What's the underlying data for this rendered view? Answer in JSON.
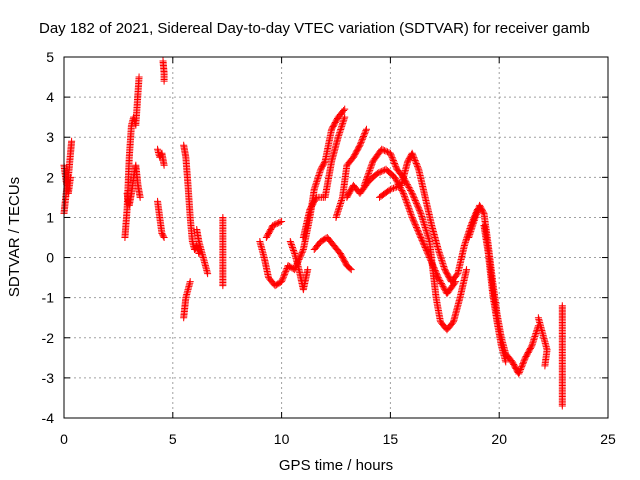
{
  "chart_data": {
    "type": "scatter",
    "title": "Day 182 of 2021, Sidereal Day-to-day VTEC variation (SDTVAR) for receiver gamb",
    "xlabel": "GPS time / hours",
    "ylabel": "SDTVAR / TECUs",
    "xlim": [
      0,
      25
    ],
    "ylim": [
      -4,
      5
    ],
    "xticks": [
      "0",
      "5",
      "10",
      "15",
      "20",
      "25"
    ],
    "yticks": [
      "-4",
      "-3",
      "-2",
      "-1",
      "0",
      "1",
      "2",
      "3",
      "4",
      "5"
    ],
    "grid": true,
    "marker": "+",
    "marker_color": "#ff0000",
    "series": [
      {
        "name": "gamb",
        "tracks": [
          [
            [
              0.0,
              1.1
            ],
            [
              0.1,
              1.6
            ],
            [
              0.2,
              2.0
            ],
            [
              0.3,
              2.6
            ],
            [
              0.35,
              2.9
            ]
          ],
          [
            [
              0.0,
              2.3
            ],
            [
              0.1,
              1.9
            ],
            [
              0.2,
              1.6
            ],
            [
              0.3,
              2.0
            ]
          ],
          [
            [
              2.8,
              0.5
            ],
            [
              2.9,
              1.2
            ],
            [
              3.0,
              2.5
            ],
            [
              3.1,
              3.3
            ],
            [
              3.2,
              3.5
            ],
            [
              3.3,
              3.3
            ],
            [
              3.4,
              4.1
            ],
            [
              3.45,
              4.5
            ]
          ],
          [
            [
              2.9,
              1.6
            ],
            [
              3.0,
              1.3
            ],
            [
              3.1,
              1.6
            ],
            [
              3.2,
              2.0
            ],
            [
              3.3,
              2.3
            ],
            [
              3.4,
              1.8
            ],
            [
              3.5,
              1.5
            ]
          ],
          [
            [
              4.3,
              2.7
            ],
            [
              4.4,
              2.5
            ],
            [
              4.5,
              2.6
            ],
            [
              4.6,
              2.3
            ]
          ],
          [
            [
              4.3,
              1.4
            ],
            [
              4.4,
              1.0
            ],
            [
              4.5,
              0.6
            ],
            [
              4.6,
              0.5
            ]
          ],
          [
            [
              4.55,
              4.9
            ],
            [
              4.6,
              4.6
            ],
            [
              4.6,
              4.4
            ]
          ],
          [
            [
              5.5,
              2.8
            ],
            [
              5.6,
              2.5
            ],
            [
              5.7,
              1.8
            ],
            [
              5.8,
              1.0
            ],
            [
              5.9,
              0.4
            ],
            [
              6.0,
              0.2
            ],
            [
              6.1,
              0.3
            ],
            [
              6.2,
              0.1
            ]
          ],
          [
            [
              5.5,
              -1.5
            ],
            [
              5.6,
              -1.0
            ],
            [
              5.7,
              -0.8
            ],
            [
              5.8,
              -0.6
            ]
          ],
          [
            [
              6.1,
              0.7
            ],
            [
              6.2,
              0.4
            ],
            [
              6.3,
              0.2
            ],
            [
              6.4,
              0.0
            ],
            [
              6.5,
              -0.2
            ],
            [
              6.6,
              -0.4
            ]
          ],
          [
            [
              7.3,
              1.0
            ],
            [
              7.3,
              0.4
            ],
            [
              7.3,
              -0.2
            ],
            [
              7.3,
              -0.7
            ]
          ],
          [
            [
              9.0,
              0.4
            ],
            [
              9.2,
              0.0
            ],
            [
              9.4,
              -0.5
            ],
            [
              9.7,
              -0.7
            ],
            [
              10.0,
              -0.6
            ],
            [
              10.3,
              -0.2
            ],
            [
              10.6,
              -0.3
            ],
            [
              11.0,
              0.2
            ],
            [
              11.3,
              1.0
            ],
            [
              11.5,
              1.7
            ],
            [
              11.8,
              2.2
            ],
            [
              12.0,
              2.4
            ],
            [
              12.3,
              3.2
            ],
            [
              12.6,
              3.5
            ],
            [
              12.9,
              3.7
            ]
          ],
          [
            [
              9.3,
              0.5
            ],
            [
              9.6,
              0.8
            ],
            [
              10.0,
              0.9
            ]
          ],
          [
            [
              10.4,
              0.4
            ],
            [
              10.6,
              0.1
            ],
            [
              10.8,
              -0.3
            ],
            [
              11.0,
              -0.8
            ],
            [
              11.2,
              -0.3
            ]
          ],
          [
            [
              11.5,
              0.2
            ],
            [
              11.8,
              0.4
            ],
            [
              12.1,
              0.5
            ],
            [
              12.4,
              0.3
            ],
            [
              12.7,
              0.1
            ],
            [
              13.0,
              -0.2
            ],
            [
              13.2,
              -0.3
            ]
          ],
          [
            [
              11.0,
              0.5
            ],
            [
              11.3,
              1.2
            ],
            [
              11.6,
              1.5
            ],
            [
              12.0,
              1.5
            ],
            [
              12.3,
              2.4
            ],
            [
              12.6,
              3.0
            ],
            [
              12.9,
              3.5
            ]
          ],
          [
            [
              12.5,
              1.0
            ],
            [
              12.8,
              1.5
            ],
            [
              13.0,
              2.3
            ],
            [
              13.3,
              2.5
            ],
            [
              13.6,
              2.8
            ],
            [
              13.9,
              3.2
            ]
          ],
          [
            [
              13.0,
              1.5
            ],
            [
              13.3,
              1.8
            ],
            [
              13.6,
              1.6
            ],
            [
              14.0,
              1.9
            ],
            [
              14.4,
              2.1
            ],
            [
              14.8,
              2.2
            ],
            [
              15.2,
              2.0
            ],
            [
              15.6,
              1.6
            ],
            [
              16.0,
              1.0
            ],
            [
              16.4,
              0.5
            ],
            [
              16.8,
              0.0
            ],
            [
              17.2,
              -0.5
            ],
            [
              17.6,
              -0.9
            ],
            [
              18.0,
              -0.6
            ]
          ],
          [
            [
              13.8,
              1.8
            ],
            [
              14.2,
              2.4
            ],
            [
              14.6,
              2.7
            ],
            [
              15.0,
              2.6
            ],
            [
              15.3,
              2.2
            ],
            [
              15.6,
              2.0
            ],
            [
              16.0,
              1.6
            ],
            [
              16.4,
              1.1
            ],
            [
              16.8,
              0.4
            ],
            [
              17.1,
              -1.0
            ],
            [
              17.3,
              -1.6
            ],
            [
              17.6,
              -1.8
            ],
            [
              17.9,
              -1.6
            ],
            [
              18.2,
              -1.0
            ],
            [
              18.5,
              -0.3
            ]
          ],
          [
            [
              14.5,
              1.5
            ],
            [
              15.0,
              1.7
            ],
            [
              15.5,
              1.8
            ],
            [
              15.8,
              2.4
            ],
            [
              16.0,
              2.6
            ],
            [
              16.3,
              2.2
            ],
            [
              16.6,
              1.5
            ],
            [
              16.9,
              0.8
            ],
            [
              17.2,
              0.2
            ],
            [
              17.5,
              -0.3
            ],
            [
              17.8,
              -0.6
            ],
            [
              18.1,
              -0.4
            ],
            [
              18.4,
              0.3
            ],
            [
              18.7,
              0.8
            ],
            [
              19.0,
              1.2
            ]
          ],
          [
            [
              18.6,
              0.5
            ],
            [
              18.9,
              1.0
            ],
            [
              19.1,
              1.3
            ],
            [
              19.3,
              1.1
            ],
            [
              19.5,
              0.3
            ],
            [
              19.7,
              -0.6
            ],
            [
              19.9,
              -1.4
            ],
            [
              20.1,
              -2.0
            ],
            [
              20.3,
              -2.4
            ],
            [
              20.6,
              -2.6
            ],
            [
              20.9,
              -2.9
            ],
            [
              21.2,
              -2.5
            ],
            [
              21.5,
              -2.2
            ],
            [
              21.8,
              -1.7
            ]
          ],
          [
            [
              19.3,
              0.8
            ],
            [
              19.5,
              0.1
            ],
            [
              19.7,
              -0.9
            ],
            [
              19.9,
              -1.6
            ],
            [
              20.1,
              -2.2
            ],
            [
              20.3,
              -2.6
            ]
          ],
          [
            [
              21.8,
              -1.5
            ],
            [
              22.0,
              -1.9
            ],
            [
              22.2,
              -2.3
            ],
            [
              22.1,
              -2.7
            ]
          ],
          [
            [
              22.9,
              -1.2
            ],
            [
              22.9,
              -1.5
            ],
            [
              22.9,
              -2.8
            ],
            [
              22.9,
              -3.7
            ]
          ]
        ]
      }
    ]
  }
}
